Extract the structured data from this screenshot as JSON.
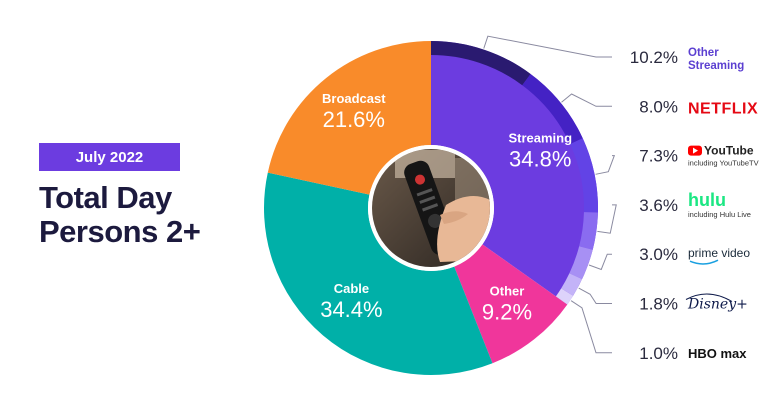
{
  "badge": "July 2022",
  "title_line1": "Total Day",
  "title_line2": "Persons 2+",
  "colors": {
    "streaming": "#6c3ce0",
    "other": "#f0369b",
    "cable": "#00b0a8",
    "broadcast": "#f98b2a",
    "title": "#1c1a3e",
    "badge": "#6c3ce0",
    "connector": "#8a8aa0"
  },
  "chart_data": {
    "type": "pie",
    "style": "donut",
    "center_image": "hand holding a tv remote",
    "segments": [
      {
        "name": "Streaming",
        "value": 34.8,
        "label": "34.8%",
        "color": "#6c3ce0"
      },
      {
        "name": "Other",
        "value": 9.2,
        "label": "9.2%",
        "color": "#f0369b"
      },
      {
        "name": "Cable",
        "value": 34.4,
        "label": "34.4%",
        "color": "#00b0a8"
      },
      {
        "name": "Broadcast",
        "value": 21.6,
        "label": "21.6%",
        "color": "#f98b2a"
      }
    ],
    "streaming_breakdown": [
      {
        "name": "Other Streaming",
        "value": 10.2,
        "label": "10.2%",
        "color": "#2a1a70",
        "brand_line1": "Other",
        "brand_line2": "Streaming"
      },
      {
        "name": "Netflix",
        "value": 8.0,
        "label": "8.0%",
        "color": "#4422c4",
        "brand": "NETFLIX"
      },
      {
        "name": "YouTube",
        "value": 7.3,
        "label": "7.3%",
        "color": "#6243e6",
        "brand": "YouTube",
        "brand_sub": "including YouTubeTV"
      },
      {
        "name": "Hulu",
        "value": 3.6,
        "label": "3.6%",
        "color": "#8a6cf0",
        "brand": "hulu",
        "brand_sub": "including Hulu Live"
      },
      {
        "name": "Prime Video",
        "value": 3.0,
        "label": "3.0%",
        "color": "#a790f4",
        "brand": "prime video"
      },
      {
        "name": "Disney+",
        "value": 1.8,
        "label": "1.8%",
        "color": "#c3b3f8",
        "brand": "Disney+"
      },
      {
        "name": "HBO Max",
        "value": 1.0,
        "label": "1.0%",
        "color": "#ddd3fb",
        "brand": "HBO max"
      }
    ]
  }
}
